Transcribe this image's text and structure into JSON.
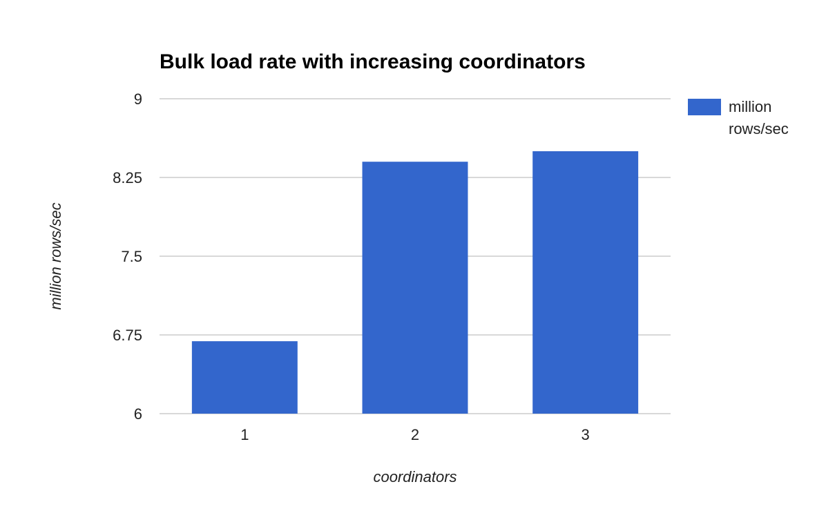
{
  "chart_data": {
    "type": "bar",
    "title": "Bulk load rate with increasing coordinators",
    "xlabel": "coordinators",
    "ylabel": "million rows/sec",
    "categories": [
      "1",
      "2",
      "3"
    ],
    "series": [
      {
        "name": "million rows/sec",
        "name_lines": [
          "million",
          "rows/sec"
        ],
        "values": [
          6.69,
          8.4,
          8.5
        ],
        "color": "#3366cc"
      }
    ],
    "ylim": [
      6,
      9
    ],
    "yticks": [
      "6",
      "6.75",
      "7.5",
      "8.25",
      "9"
    ],
    "grid": true,
    "legend_position": "right"
  }
}
